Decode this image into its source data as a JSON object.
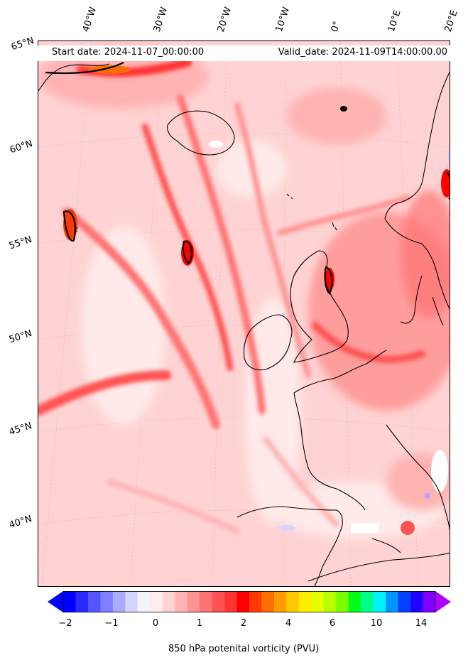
{
  "header": {
    "start_date": "Start date: 2024-11-07_00:00:00",
    "valid_date": "Valid_date: 2024-11-09T14:00:00.00"
  },
  "longitude_labels": [
    "40°W",
    "30°W",
    "20°W",
    "10°W",
    "0°",
    "10°E",
    "20°E"
  ],
  "latitude_labels": [
    "65°N",
    "60°N",
    "55°N",
    "50°N",
    "45°N",
    "40°N"
  ],
  "colorbar": {
    "label": "850 hPa potenital vorticity (PVU)",
    "ticks": [
      "−2",
      "−1",
      "0",
      "1",
      "2",
      "4",
      "6",
      "10",
      "14"
    ],
    "colors": [
      "#0000ff",
      "#2a2aff",
      "#5555ff",
      "#7f7fff",
      "#aaaaff",
      "#d4d4ff",
      "#f4f4ff",
      "#ffecec",
      "#ffd3d3",
      "#ffb3b3",
      "#ff9393",
      "#ff7373",
      "#ff5353",
      "#ff3333",
      "#ff0000",
      "#ff3a00",
      "#ff6e00",
      "#ff9c00",
      "#ffc800",
      "#ffee00",
      "#e6ff00",
      "#b4ff00",
      "#7aff00",
      "#00ff18",
      "#00ff8a",
      "#00f2ff",
      "#0096ff",
      "#0040ff",
      "#2000ff",
      "#8000ff"
    ],
    "under_color": "#0000ff",
    "over_color": "#b000ff"
  },
  "contour_label": "2"
}
